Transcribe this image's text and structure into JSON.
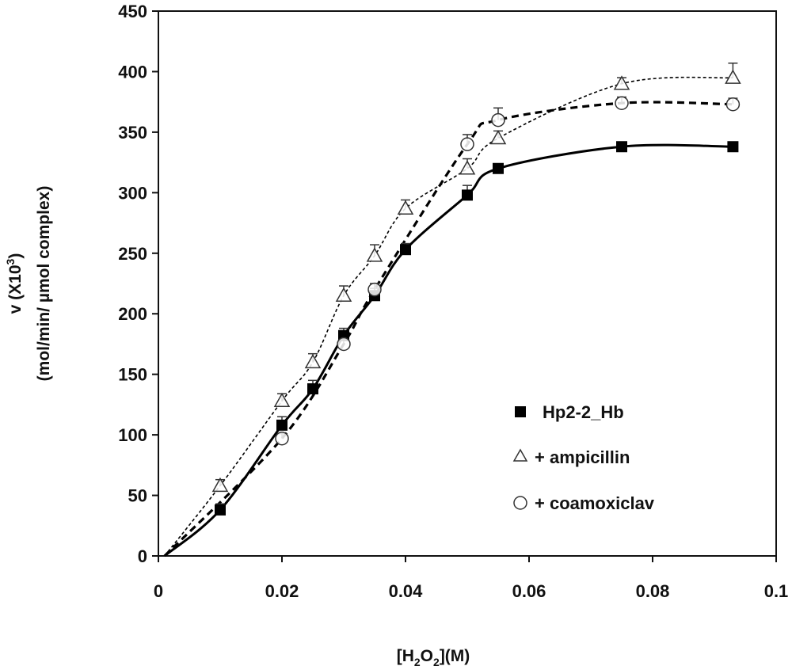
{
  "chart_data": {
    "type": "scatter",
    "xlabel": "[H2O2](M)",
    "ylabel_line1": "v (X10",
    "ylabel_sup": "3",
    "ylabel_line2": "(mol/min/ µmol complex)",
    "xlim": [
      0,
      0.1
    ],
    "ylim": [
      0,
      450
    ],
    "x_ticks": [
      "0",
      "0.02",
      "0.04",
      "0.06",
      "0.08",
      "0.1"
    ],
    "y_ticks": [
      "0",
      "50",
      "100",
      "150",
      "200",
      "250",
      "300",
      "350",
      "400",
      "450"
    ],
    "grid": false,
    "legend_position": "bottom-right",
    "series": [
      {
        "name": "Hp2-2_Hb",
        "marker": "filled-square",
        "line": "solid",
        "color": "#000000",
        "x": [
          0.01,
          0.02,
          0.025,
          0.03,
          0.035,
          0.04,
          0.05,
          0.055,
          0.075,
          0.093
        ],
        "y": [
          38,
          108,
          138,
          182,
          215,
          253,
          298,
          320,
          338,
          338
        ],
        "error": [
          5,
          7,
          7,
          6,
          6,
          5,
          8,
          3,
          3,
          3
        ]
      },
      {
        "name": "+ ampicillin",
        "marker": "open-triangle",
        "line": "dashed-thin",
        "color": "#000000",
        "x": [
          0.01,
          0.02,
          0.025,
          0.03,
          0.035,
          0.04,
          0.05,
          0.055,
          0.075,
          0.093
        ],
        "y": [
          58,
          128,
          160,
          215,
          248,
          287,
          320,
          345,
          390,
          395
        ],
        "error": [
          5,
          6,
          7,
          8,
          9,
          7,
          8,
          6,
          5,
          12
        ]
      },
      {
        "name": "+ coamoxiclav",
        "marker": "open-circle",
        "line": "dashed-bold",
        "color": "#000000",
        "x": [
          0.02,
          0.03,
          0.035,
          0.05,
          0.055,
          0.075,
          0.093
        ],
        "y": [
          97,
          175,
          220,
          340,
          360,
          374,
          373
        ],
        "error": [
          4,
          6,
          5,
          8,
          10,
          5,
          5
        ]
      }
    ]
  }
}
